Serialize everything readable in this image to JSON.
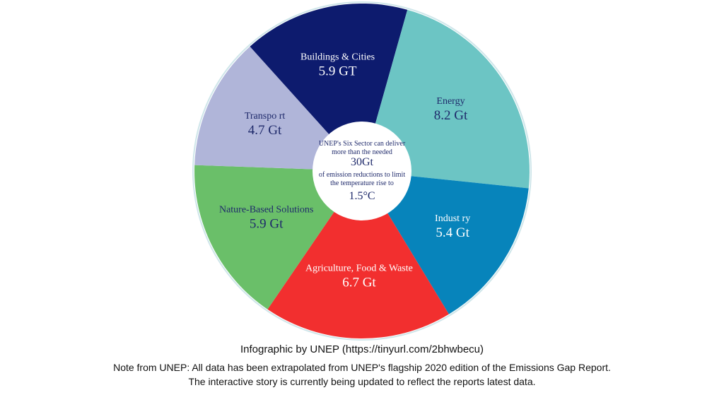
{
  "chart_data": {
    "type": "pie",
    "categories": [
      "Buildings & Cities",
      "Energy",
      "Indust ry",
      "Agriculture, Food & Waste",
      "Nature-Based Solutions",
      "Transpo rt"
    ],
    "values": [
      5.9,
      8.2,
      5.4,
      6.7,
      5.9,
      4.7
    ],
    "value_labels": [
      "5.9 GT",
      "8.2 Gt",
      "5.4 Gt",
      "6.7 Gt",
      "5.9 Gt",
      "4.7 Gt"
    ],
    "colors": [
      "#0d1b6e",
      "#6cc5c4",
      "#0784bb",
      "#f22f2f",
      "#6abf69",
      "#b0b5d9"
    ],
    "center_text": [
      "UNEP's Six Sector can deliver more than the needed",
      "30Gt",
      "of emission reductions to limit the temperature rise to",
      "1.5°C"
    ]
  },
  "caption": "Infographic by UNEP (https://tinyurl.com/2bhwbecu)",
  "note": "Note from UNEP: All data has been extrapolated from UNEP's flagship 2020 edition of the Emissions Gap Report. The interactive story is currently being updated to reflect the reports latest data."
}
